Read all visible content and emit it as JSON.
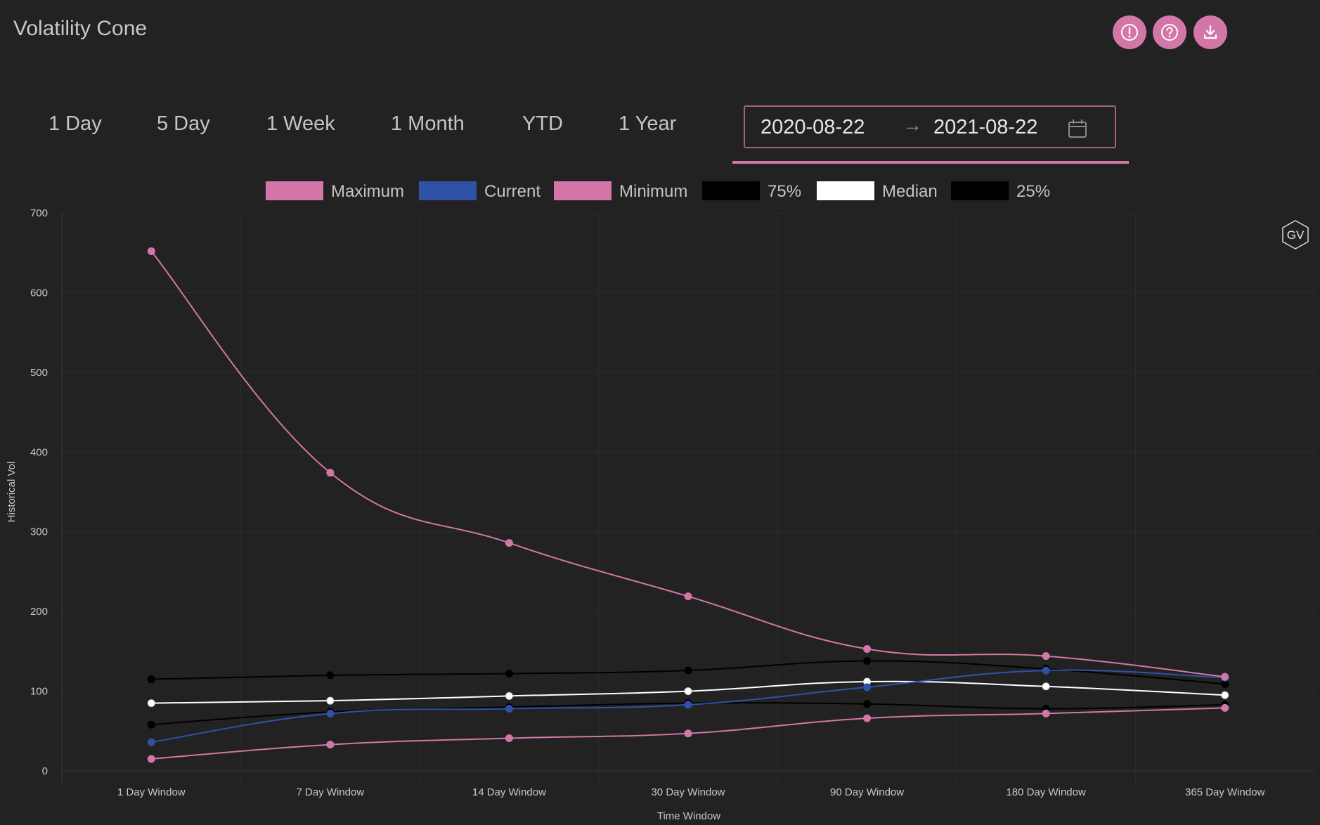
{
  "header": {
    "title": "Volatility Cone",
    "buttons": [
      {
        "name": "alert-icon",
        "color": "#d277a8"
      },
      {
        "name": "help-icon",
        "color": "#d277a8"
      },
      {
        "name": "download-icon",
        "color": "#d277a8"
      }
    ]
  },
  "tabs": [
    "1 Day",
    "5 Day",
    "1 Week",
    "1 Month",
    "YTD",
    "1 Year"
  ],
  "date_range": {
    "start": "2020-08-22",
    "separator": "→",
    "end": "2021-08-22",
    "icon": "calendar-icon"
  },
  "badge": "GV",
  "colors": {
    "accent": "#d277a8",
    "background": "#222222"
  },
  "chart_data": {
    "type": "line",
    "xlabel": "Time Window",
    "ylabel": "Historical Vol",
    "categories": [
      "1 Day Window",
      "7 Day Window",
      "14 Day Window",
      "30 Day Window",
      "90 Day Window",
      "180 Day Window",
      "365 Day Window"
    ],
    "ylim": [
      0,
      700
    ],
    "yticks": [
      0,
      100,
      200,
      300,
      400,
      500,
      600,
      700
    ],
    "grid": true,
    "legend_position": "top",
    "series": [
      {
        "name": "Maximum",
        "color": "#d277a8",
        "values": [
          652,
          374,
          286,
          219,
          153,
          144,
          118
        ]
      },
      {
        "name": "Current",
        "color": "#2f52a6",
        "values": [
          36,
          72,
          78,
          83,
          105,
          126,
          117
        ]
      },
      {
        "name": "Minimum",
        "color": "#d277a8",
        "values": [
          15,
          33,
          41,
          47,
          66,
          72,
          79
        ]
      },
      {
        "name": "75%",
        "color": "#000000",
        "values": [
          115,
          120,
          122,
          126,
          138,
          128,
          109
        ]
      },
      {
        "name": "Median",
        "color": "#ffffff",
        "values": [
          85,
          88,
          94,
          100,
          112,
          106,
          95
        ]
      },
      {
        "name": "25%",
        "color": "#000000",
        "values": [
          58,
          74,
          80,
          85,
          84,
          78,
          83
        ]
      }
    ]
  }
}
